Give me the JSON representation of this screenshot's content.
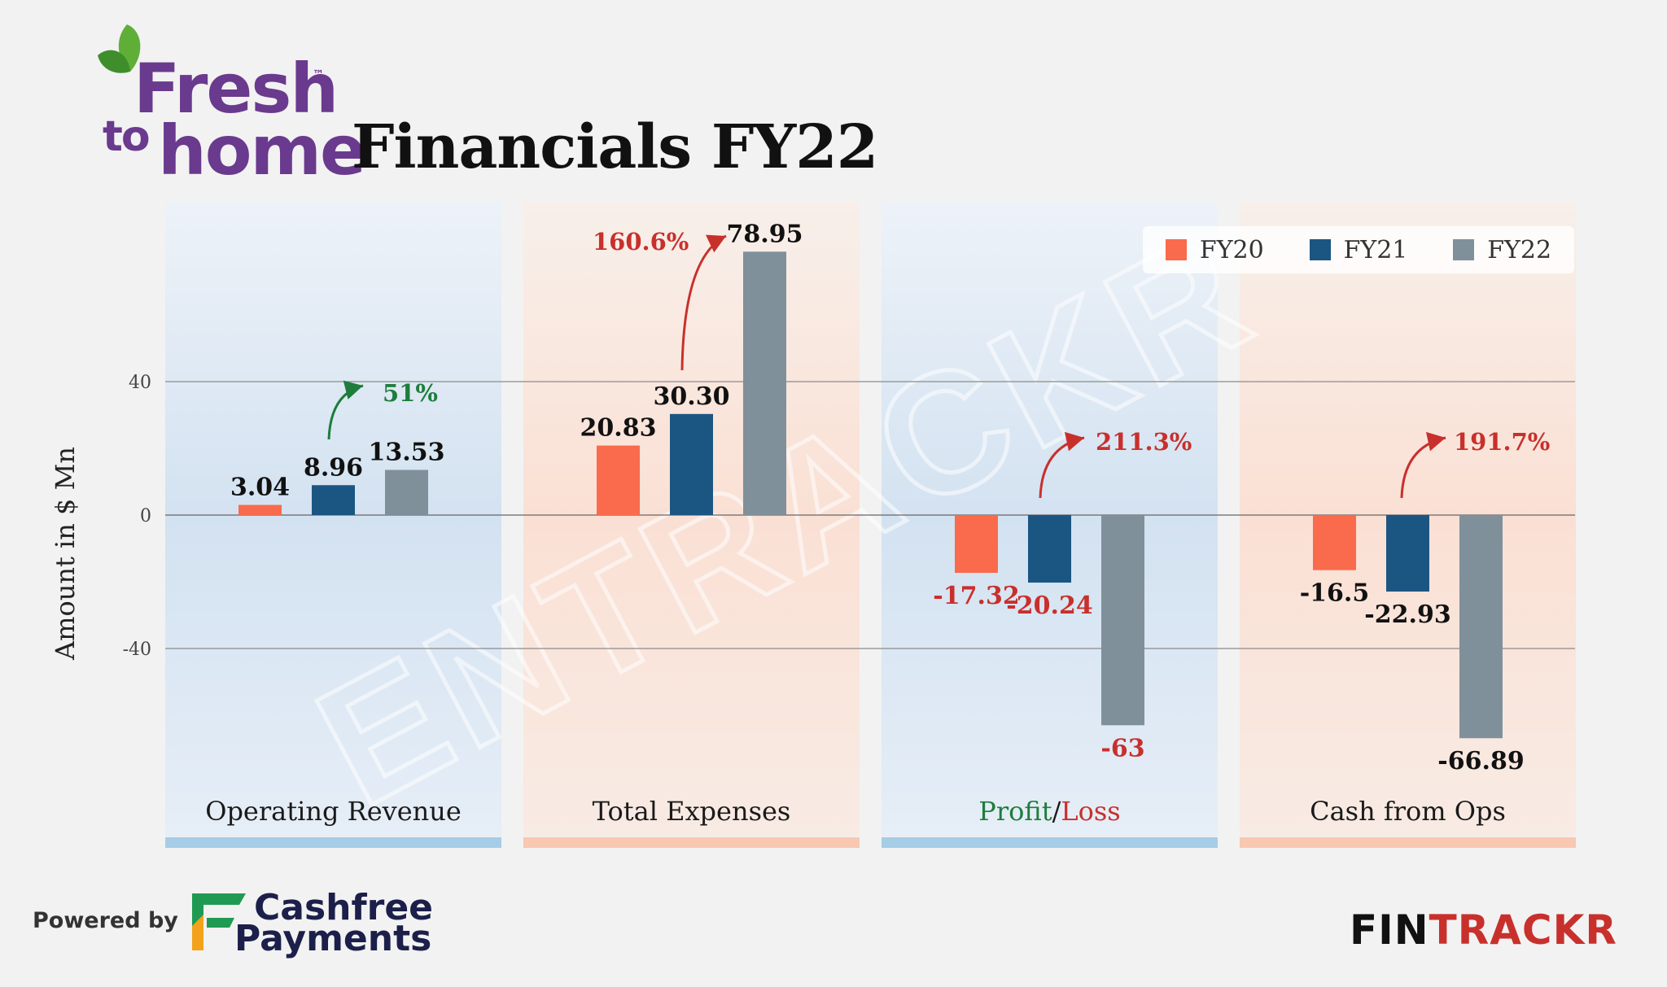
{
  "brand": {
    "logo_line1": "Fresh",
    "logo_line2": "to",
    "logo_line3": "home",
    "logo_tm": "™",
    "footer_powered": "Powered by",
    "cashfree_line1": "Cashfree",
    "cashfree_line2": "Payments",
    "footer_brand_a": "FIN",
    "footer_brand_b": "TRACKR",
    "watermark": "ENTRACKR"
  },
  "colors": {
    "fy20": "#fa6a4c",
    "fy21": "#1b5683",
    "fy22": "#7f909b",
    "positive": "#1e7d3c",
    "negative": "#c8302c",
    "panel_blue": "#cfe0f1",
    "panel_peach": "#fbe1d6",
    "strip_blue": "#a5cde6",
    "strip_peach": "#f8c8b0"
  },
  "chart_data": {
    "type": "bar",
    "title": "Financials FY22",
    "ylabel": "Amount in $ Mn",
    "ylim": [
      -100,
      90
    ],
    "yticks": [
      40,
      0,
      -40
    ],
    "ytick_labels": [
      "40",
      "0",
      "-40"
    ],
    "legend_position": "top-right",
    "grid": true,
    "categories": [
      "Operating Revenue",
      "Total Expenses",
      "Profit/Loss",
      "Cash from Ops"
    ],
    "category_label_parts": {
      "profit": "Profit",
      "slash": "/",
      "loss": "Loss"
    },
    "series": [
      {
        "name": "FY20",
        "values": [
          3.04,
          20.83,
          -17.32,
          -16.5
        ],
        "labels": [
          "3.04",
          "20.83",
          "-17.32",
          "-16.5"
        ]
      },
      {
        "name": "FY21",
        "values": [
          8.96,
          30.3,
          -20.24,
          -22.93
        ],
        "labels": [
          "8.96",
          "30.30",
          "-20.24",
          "-22.93"
        ]
      },
      {
        "name": "FY22",
        "values": [
          13.53,
          78.95,
          -63,
          -66.89
        ],
        "labels": [
          "13.53",
          "78.95",
          "-63",
          "-66.89"
        ]
      }
    ],
    "growth_annotations": [
      "51%",
      "160.6%",
      "211.3%",
      "191.7%"
    ]
  }
}
